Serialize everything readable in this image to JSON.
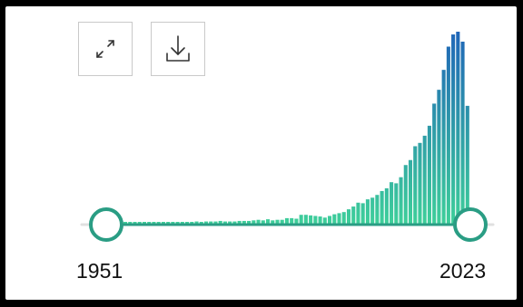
{
  "toolbar": {
    "expand_icon": "expand-arrows-icon",
    "download_icon": "download-icon"
  },
  "slider": {
    "min_label": "1951",
    "max_label": "2023",
    "range": [
      1951,
      2023
    ],
    "selected": [
      1951,
      2023
    ]
  },
  "colors": {
    "bar_bottom": "#3ecf9a",
    "bar_top": "#1f64b8",
    "track": "#2a9d84",
    "handle_border": "#2a9d84"
  },
  "chart_data": {
    "type": "bar",
    "x": [
      1951,
      1952,
      1953,
      1954,
      1955,
      1956,
      1957,
      1958,
      1959,
      1960,
      1961,
      1962,
      1963,
      1964,
      1965,
      1966,
      1967,
      1968,
      1969,
      1970,
      1971,
      1972,
      1973,
      1974,
      1975,
      1976,
      1977,
      1978,
      1979,
      1980,
      1981,
      1982,
      1983,
      1984,
      1985,
      1986,
      1987,
      1988,
      1989,
      1990,
      1991,
      1992,
      1993,
      1994,
      1995,
      1996,
      1997,
      1998,
      1999,
      2000,
      2001,
      2002,
      2003,
      2004,
      2005,
      2006,
      2007,
      2008,
      2009,
      2010,
      2011,
      2012,
      2013,
      2014,
      2015,
      2016,
      2017,
      2018,
      2019,
      2020,
      2021,
      2022,
      2023
    ],
    "values": [
      2,
      1,
      2,
      1,
      2,
      2,
      2,
      2,
      2,
      2,
      2,
      2,
      3,
      3,
      3,
      4,
      3,
      4,
      4,
      4,
      5,
      4,
      4,
      4,
      5,
      5,
      5,
      6,
      7,
      6,
      8,
      6,
      7,
      7,
      10,
      10,
      9,
      16,
      16,
      15,
      14,
      13,
      11,
      14,
      17,
      19,
      21,
      26,
      31,
      38,
      37,
      44,
      47,
      52,
      59,
      64,
      75,
      73,
      84,
      106,
      115,
      140,
      146,
      159,
      177,
      217,
      242,
      278,
      320,
      342,
      347,
      329,
      213
    ],
    "xlim": [
      1951,
      2023
    ]
  }
}
